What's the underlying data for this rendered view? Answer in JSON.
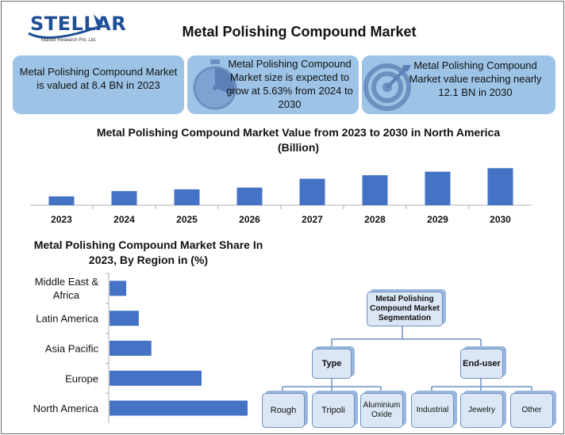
{
  "logo": {
    "word": "STELLAR",
    "tagline": "Market Research Pvt. Ltd."
  },
  "title": "Metal Polishing Compound Market",
  "cards": [
    {
      "text": "Metal Polishing Compound Market is valued at 8.4 BN in 2023",
      "icon": "none"
    },
    {
      "text": "Metal Polishing Compound Market size is expected to grow at 5.63% from 2024 to 2030",
      "icon": "stopwatch-icon"
    },
    {
      "text": "Metal Polishing Compound Market value reaching nearly 12.1 BN in 2030",
      "icon": "target-icon"
    }
  ],
  "colors": {
    "bar": "#4472c4",
    "card": "#9dc3e6",
    "box": "#dbe7f5",
    "box_border": "#6f90c4"
  },
  "chart_data": [
    {
      "type": "bar",
      "title": "Metal Polishing Compound Market Value from 2023 to 2030 in North America (Billion)",
      "categories": [
        "2023",
        "2024",
        "2025",
        "2026",
        "2027",
        "2028",
        "2029",
        "2030"
      ],
      "values": [
        1.0,
        1.6,
        1.8,
        2.0,
        3.0,
        3.4,
        3.8,
        4.2
      ],
      "ylim": [
        0,
        4.4
      ],
      "grid": false,
      "legend": "none"
    },
    {
      "type": "bar",
      "orientation": "horizontal",
      "title": "Metal Polishing Compound Market Share In 2023, By Region in (%)",
      "categories": [
        "Middle East & Africa",
        "Latin America",
        "Asia Pacific",
        "Europe",
        "North America"
      ],
      "values": [
        4,
        7,
        10,
        22,
        33
      ],
      "xlim": [
        0,
        35
      ],
      "grid": false,
      "legend": "none"
    }
  ],
  "segmentation": {
    "root": "Metal Polishing Compound Market Segmentation",
    "groups": [
      {
        "label": "Type",
        "items": [
          "Rough",
          "Tripoli",
          "Aluminium Oxide"
        ]
      },
      {
        "label": "End-user",
        "items": [
          "Industrial",
          "Jewelry",
          "Other"
        ]
      }
    ]
  }
}
